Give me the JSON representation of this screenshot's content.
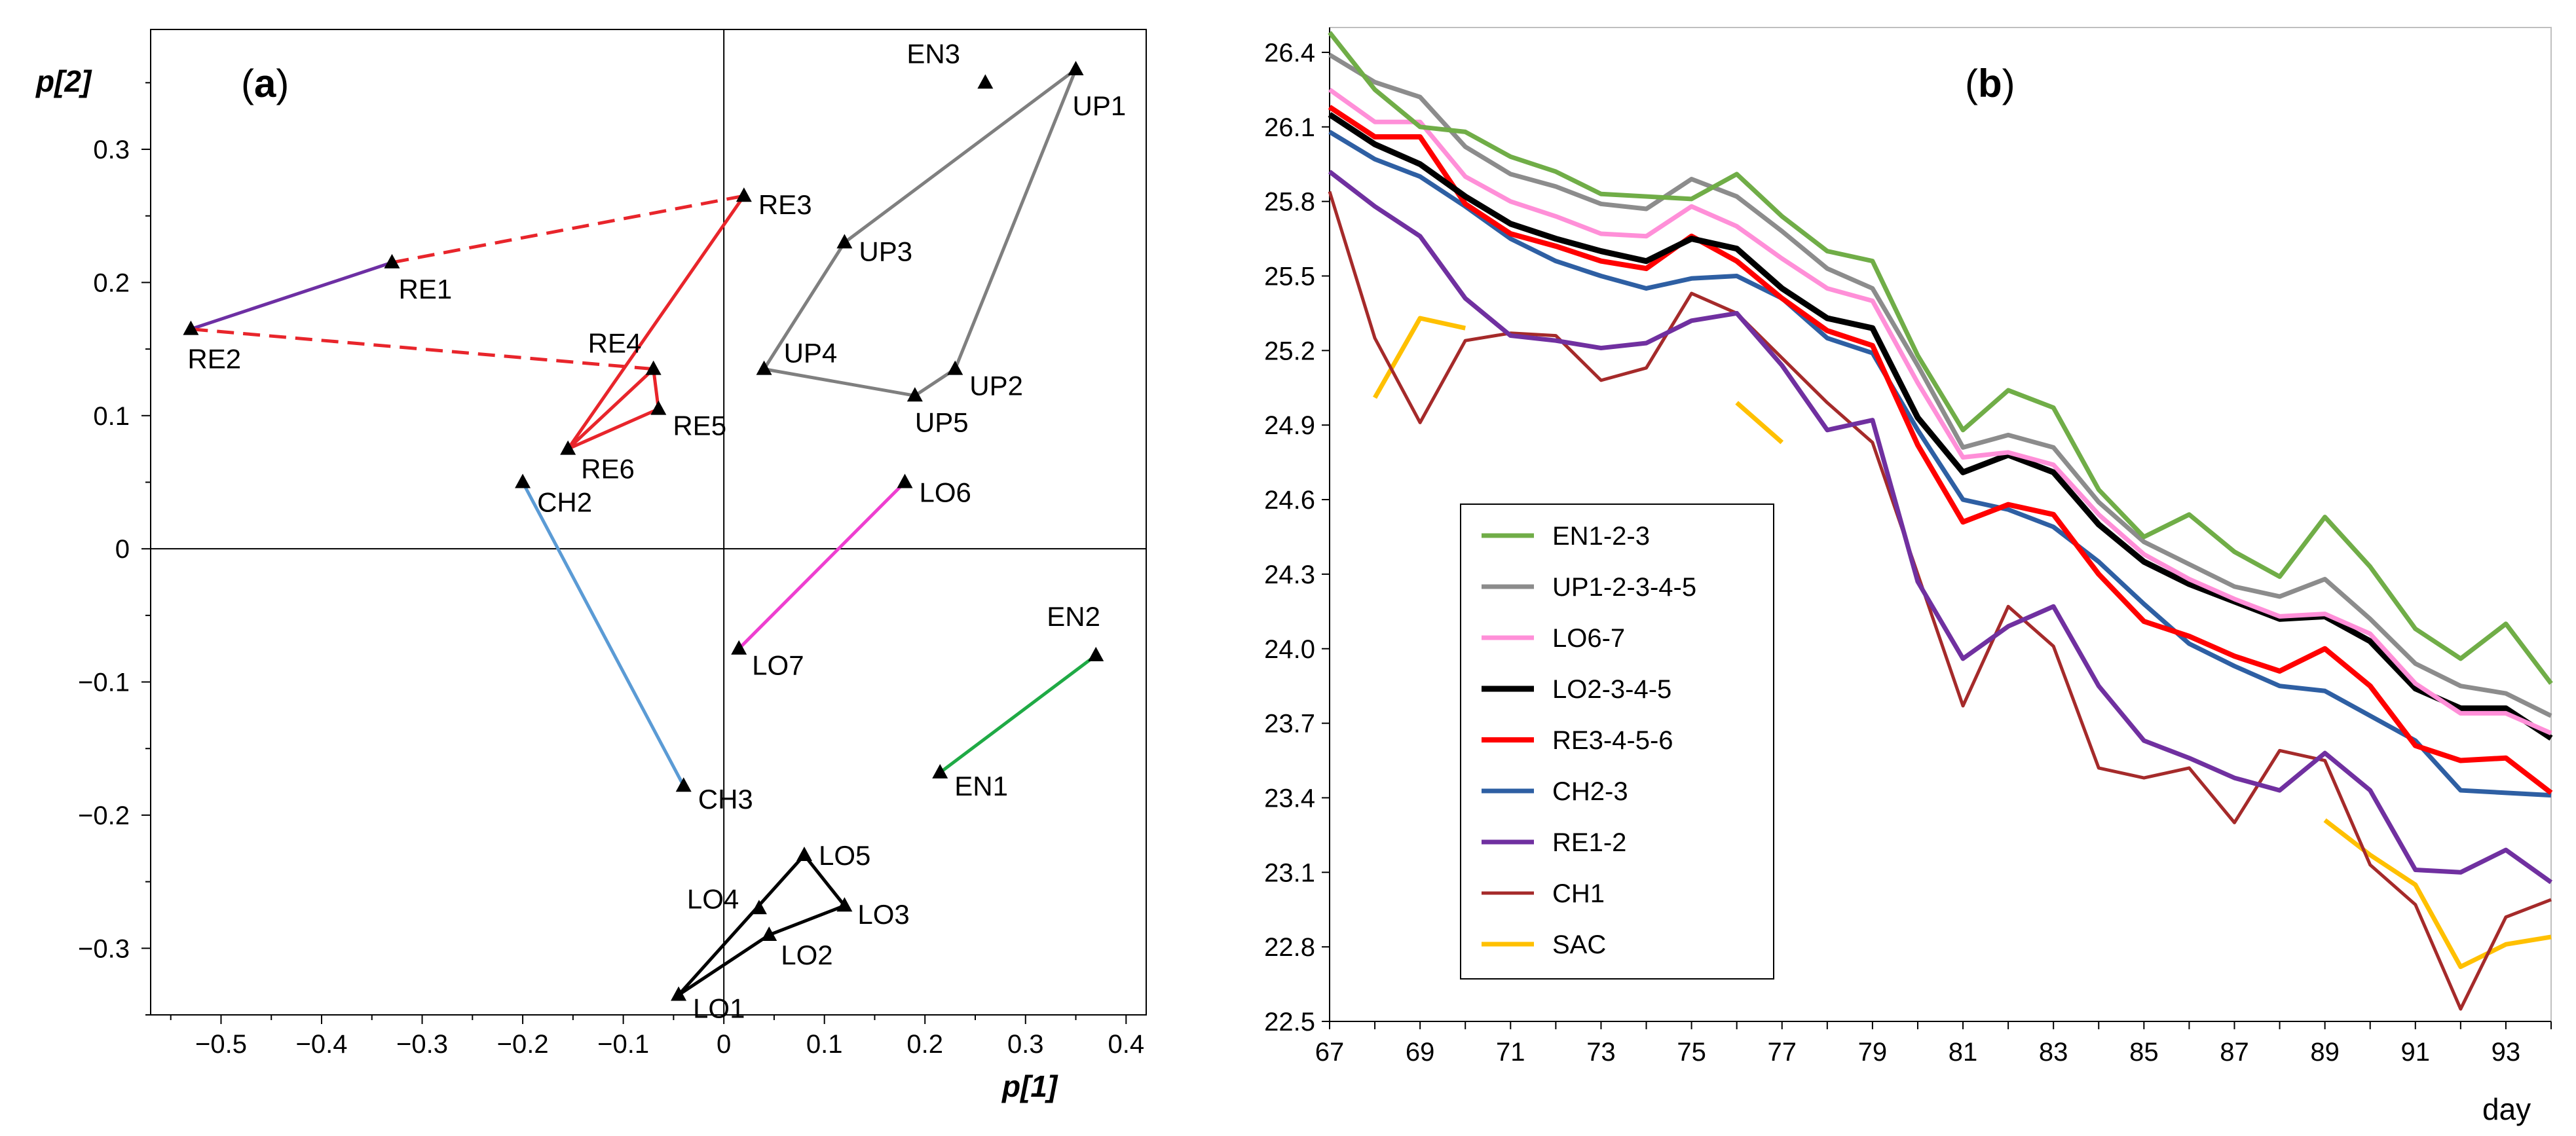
{
  "chart_data": [
    {
      "type": "scatter",
      "panel_label": "(a)",
      "panel_label_letter": "a",
      "xlabel": "p[1]",
      "ylabel": "p[2]",
      "xlim": [
        -0.57,
        0.42
      ],
      "ylim": [
        -0.35,
        0.39
      ],
      "xticks": [
        -0.5,
        -0.4,
        -0.3,
        -0.2,
        -0.1,
        0,
        0.1,
        0.2,
        0.3,
        0.4
      ],
      "xtick_labels": [
        "−0.5",
        "−0.4",
        "−0.3",
        "−0.2",
        "−0.1",
        "0",
        "0.1",
        "0.2",
        "0.3",
        "0.4"
      ],
      "yticks": [
        -0.3,
        -0.2,
        -0.1,
        0,
        0.1,
        0.2,
        0.3
      ],
      "ytick_labels": [
        "−0.3",
        "−0.2",
        "−0.1",
        "0",
        "0.1",
        "0.2",
        "0.3"
      ],
      "points": [
        {
          "id": "EN3",
          "x": 0.26,
          "y": 0.35,
          "lx": -120,
          "ly": -30
        },
        {
          "id": "UP1",
          "x": 0.35,
          "y": 0.36,
          "lx": -5,
          "ly": 70
        },
        {
          "id": "RE3",
          "x": 0.02,
          "y": 0.265,
          "lx": 22,
          "ly": 28
        },
        {
          "id": "UP3",
          "x": 0.12,
          "y": 0.23,
          "lx": 22,
          "ly": 28
        },
        {
          "id": "RE1",
          "x": -0.33,
          "y": 0.215,
          "lx": 10,
          "ly": 55
        },
        {
          "id": "RE2",
          "x": -0.53,
          "y": 0.165,
          "lx": -5,
          "ly": 60
        },
        {
          "id": "RE4",
          "x": -0.07,
          "y": 0.135,
          "lx": -100,
          "ly": -25
        },
        {
          "id": "UP4",
          "x": 0.04,
          "y": 0.135,
          "lx": 30,
          "ly": -10
        },
        {
          "id": "UP2",
          "x": 0.23,
          "y": 0.135,
          "lx": 22,
          "ly": 40
        },
        {
          "id": "UP5",
          "x": 0.19,
          "y": 0.115,
          "lx": 0,
          "ly": 55
        },
        {
          "id": "RE5",
          "x": -0.065,
          "y": 0.105,
          "lx": 22,
          "ly": 40
        },
        {
          "id": "RE6",
          "x": -0.155,
          "y": 0.075,
          "lx": 20,
          "ly": 45
        },
        {
          "id": "CH2",
          "x": -0.2,
          "y": 0.05,
          "lx": 22,
          "ly": 45
        },
        {
          "id": "LO6",
          "x": 0.18,
          "y": 0.05,
          "lx": 22,
          "ly": 30
        },
        {
          "id": "LO7",
          "x": 0.015,
          "y": -0.075,
          "lx": 20,
          "ly": 40
        },
        {
          "id": "EN2",
          "x": 0.37,
          "y": -0.08,
          "lx": -75,
          "ly": -45
        },
        {
          "id": "EN1",
          "x": 0.215,
          "y": -0.168,
          "lx": 22,
          "ly": 35
        },
        {
          "id": "CH3",
          "x": -0.04,
          "y": -0.178,
          "lx": 22,
          "ly": 35
        },
        {
          "id": "LO5",
          "x": 0.08,
          "y": -0.23,
          "lx": 22,
          "ly": 15
        },
        {
          "id": "LO3",
          "x": 0.12,
          "y": -0.268,
          "lx": 20,
          "ly": 28
        },
        {
          "id": "LO4",
          "x": 0.035,
          "y": -0.27,
          "lx": -110,
          "ly": 0
        },
        {
          "id": "LO2",
          "x": 0.045,
          "y": -0.29,
          "lx": 18,
          "ly": 45
        },
        {
          "id": "LO1",
          "x": -0.045,
          "y": -0.335,
          "lx": 22,
          "ly": 35
        }
      ],
      "connections": [
        {
          "color": "#6d2fa3",
          "style": "solid",
          "points": [
            "RE2",
            "RE1"
          ]
        },
        {
          "color": "#e8252b",
          "style": "dashed",
          "points": [
            "RE1",
            "RE3"
          ]
        },
        {
          "color": "#e8252b",
          "style": "dashed",
          "points": [
            "RE2",
            "RE4"
          ]
        },
        {
          "color": "#e8252b",
          "style": "solid",
          "points": [
            "RE3",
            "RE6",
            "RE4",
            "RE5",
            "RE6"
          ]
        },
        {
          "color": "#7f7f7f",
          "style": "solid",
          "points": [
            "UP1",
            "UP3",
            "UP4",
            "UP5",
            "UP2",
            "UP1"
          ]
        },
        {
          "color": "#ee3ed0",
          "style": "solid",
          "points": [
            "LO7",
            "LO6"
          ]
        },
        {
          "color": "#5b9bd5",
          "style": "solid",
          "points": [
            "CH2",
            "CH3"
          ]
        },
        {
          "color": "#1faa45",
          "style": "solid",
          "points": [
            "EN1",
            "EN2"
          ]
        },
        {
          "color": "#000000",
          "style": "solid",
          "points": [
            "LO1",
            "LO5",
            "LO3",
            "LO2",
            "LO1"
          ]
        }
      ]
    },
    {
      "type": "line",
      "panel_label": "(b)",
      "panel_label_letter": "b",
      "xlabel": "day",
      "ylabel": "",
      "xlim": [
        67,
        94
      ],
      "ylim": [
        22.5,
        26.5
      ],
      "xticks": [
        67,
        69,
        71,
        73,
        75,
        77,
        79,
        81,
        83,
        85,
        87,
        89,
        91,
        93
      ],
      "yticks": [
        22.5,
        22.8,
        23.1,
        23.4,
        23.7,
        24.0,
        24.3,
        24.6,
        24.9,
        25.2,
        25.5,
        25.8,
        26.1,
        26.4
      ],
      "ytick_labels": [
        "22.5",
        "22.8",
        "23.1",
        "23.4",
        "23.7",
        "24.0",
        "24.3",
        "24.6",
        "24.9",
        "25.2",
        "25.5",
        "25.8",
        "26.1",
        "26.4"
      ],
      "x": [
        67,
        68,
        69,
        70,
        71,
        72,
        73,
        74,
        75,
        76,
        77,
        78,
        79,
        80,
        81,
        82,
        83,
        84,
        85,
        86,
        87,
        88,
        89,
        90,
        91,
        92,
        93,
        94
      ],
      "series": [
        {
          "name": "EN1-2-3",
          "color": "#70ad47",
          "width": 7,
          "values": [
            26.48,
            26.25,
            26.1,
            26.08,
            25.98,
            25.92,
            25.83,
            25.82,
            25.81,
            25.91,
            25.74,
            25.6,
            25.56,
            25.18,
            24.88,
            25.04,
            24.97,
            24.64,
            24.45,
            24.54,
            24.39,
            24.29,
            24.53,
            24.33,
            24.08,
            23.96,
            24.1,
            23.86
          ]
        },
        {
          "name": "UP1-2-3-4-5",
          "color": "#8c8c8c",
          "width": 7,
          "values": [
            26.39,
            26.28,
            26.22,
            26.02,
            25.91,
            25.86,
            25.79,
            25.77,
            25.89,
            25.82,
            25.68,
            25.53,
            25.45,
            25.14,
            24.81,
            24.86,
            24.81,
            24.59,
            24.43,
            24.34,
            24.25,
            24.21,
            24.28,
            24.12,
            23.94,
            23.85,
            23.82,
            23.73
          ]
        },
        {
          "name": "LO6-7",
          "color": "#ff8fd8",
          "width": 7,
          "values": [
            26.25,
            26.12,
            26.12,
            25.9,
            25.8,
            25.74,
            25.67,
            25.66,
            25.78,
            25.7,
            25.57,
            25.45,
            25.4,
            25.07,
            24.77,
            24.79,
            24.74,
            24.54,
            24.38,
            24.28,
            24.2,
            24.13,
            24.14,
            24.06,
            23.86,
            23.74,
            23.74,
            23.66
          ]
        },
        {
          "name": "LO2-3-4-5",
          "color": "#000000",
          "width": 9,
          "values": [
            26.15,
            26.03,
            25.95,
            25.82,
            25.71,
            25.65,
            25.6,
            25.56,
            25.65,
            25.61,
            25.45,
            25.33,
            25.29,
            24.93,
            24.71,
            24.78,
            24.71,
            24.5,
            24.35,
            24.26,
            24.19,
            24.12,
            24.13,
            24.03,
            23.84,
            23.76,
            23.76,
            23.64
          ]
        },
        {
          "name": "RE3-4-5-6",
          "color": "#ff0000",
          "width": 8,
          "values": [
            26.18,
            26.06,
            26.06,
            25.79,
            25.67,
            25.62,
            25.56,
            25.53,
            25.66,
            25.56,
            25.41,
            25.28,
            25.22,
            24.82,
            24.51,
            24.58,
            24.54,
            24.3,
            24.11,
            24.05,
            23.97,
            23.91,
            24.0,
            23.85,
            23.61,
            23.55,
            23.56,
            23.42
          ]
        },
        {
          "name": "CH2-3",
          "color": "#2e5fa3",
          "width": 7,
          "values": [
            26.08,
            25.97,
            25.9,
            25.78,
            25.65,
            25.56,
            25.5,
            25.45,
            25.49,
            25.5,
            25.41,
            25.25,
            25.19,
            24.88,
            24.6,
            24.56,
            24.49,
            24.35,
            24.18,
            24.02,
            23.93,
            23.85,
            23.83,
            23.73,
            23.63,
            23.43,
            23.42,
            23.41
          ]
        },
        {
          "name": "RE1-2",
          "color": "#7030a0",
          "width": 7,
          "values": [
            25.92,
            25.78,
            25.66,
            25.41,
            25.26,
            25.24,
            25.21,
            25.23,
            25.32,
            25.35,
            25.14,
            24.88,
            24.92,
            24.27,
            23.96,
            24.09,
            24.17,
            23.85,
            23.63,
            23.56,
            23.48,
            23.43,
            23.58,
            23.43,
            23.11,
            23.1,
            23.19,
            23.06
          ]
        },
        {
          "name": "CH1",
          "color": "#a52a2a",
          "width": 5,
          "values": [
            25.84,
            25.25,
            24.91,
            25.24,
            25.27,
            25.26,
            25.08,
            25.13,
            25.43,
            25.35,
            25.17,
            24.99,
            24.83,
            24.3,
            23.77,
            24.17,
            24.01,
            23.52,
            23.48,
            23.52,
            23.3,
            23.59,
            23.55,
            23.13,
            22.97,
            22.55,
            22.92,
            22.99
          ]
        },
        {
          "name": "SAC",
          "color": "#ffc000",
          "width": 7,
          "segments": [
            [
              [
                68,
                25.01
              ],
              [
                69,
                25.33
              ],
              [
                70,
                25.29
              ]
            ],
            [
              [
                76,
                24.99
              ],
              [
                77,
                24.83
              ]
            ],
            [
              [
                89,
                23.31
              ],
              [
                90,
                23.17
              ],
              [
                91,
                23.05
              ],
              [
                92,
                22.72
              ],
              [
                93,
                22.81
              ],
              [
                94,
                22.84
              ]
            ]
          ]
        }
      ]
    }
  ]
}
